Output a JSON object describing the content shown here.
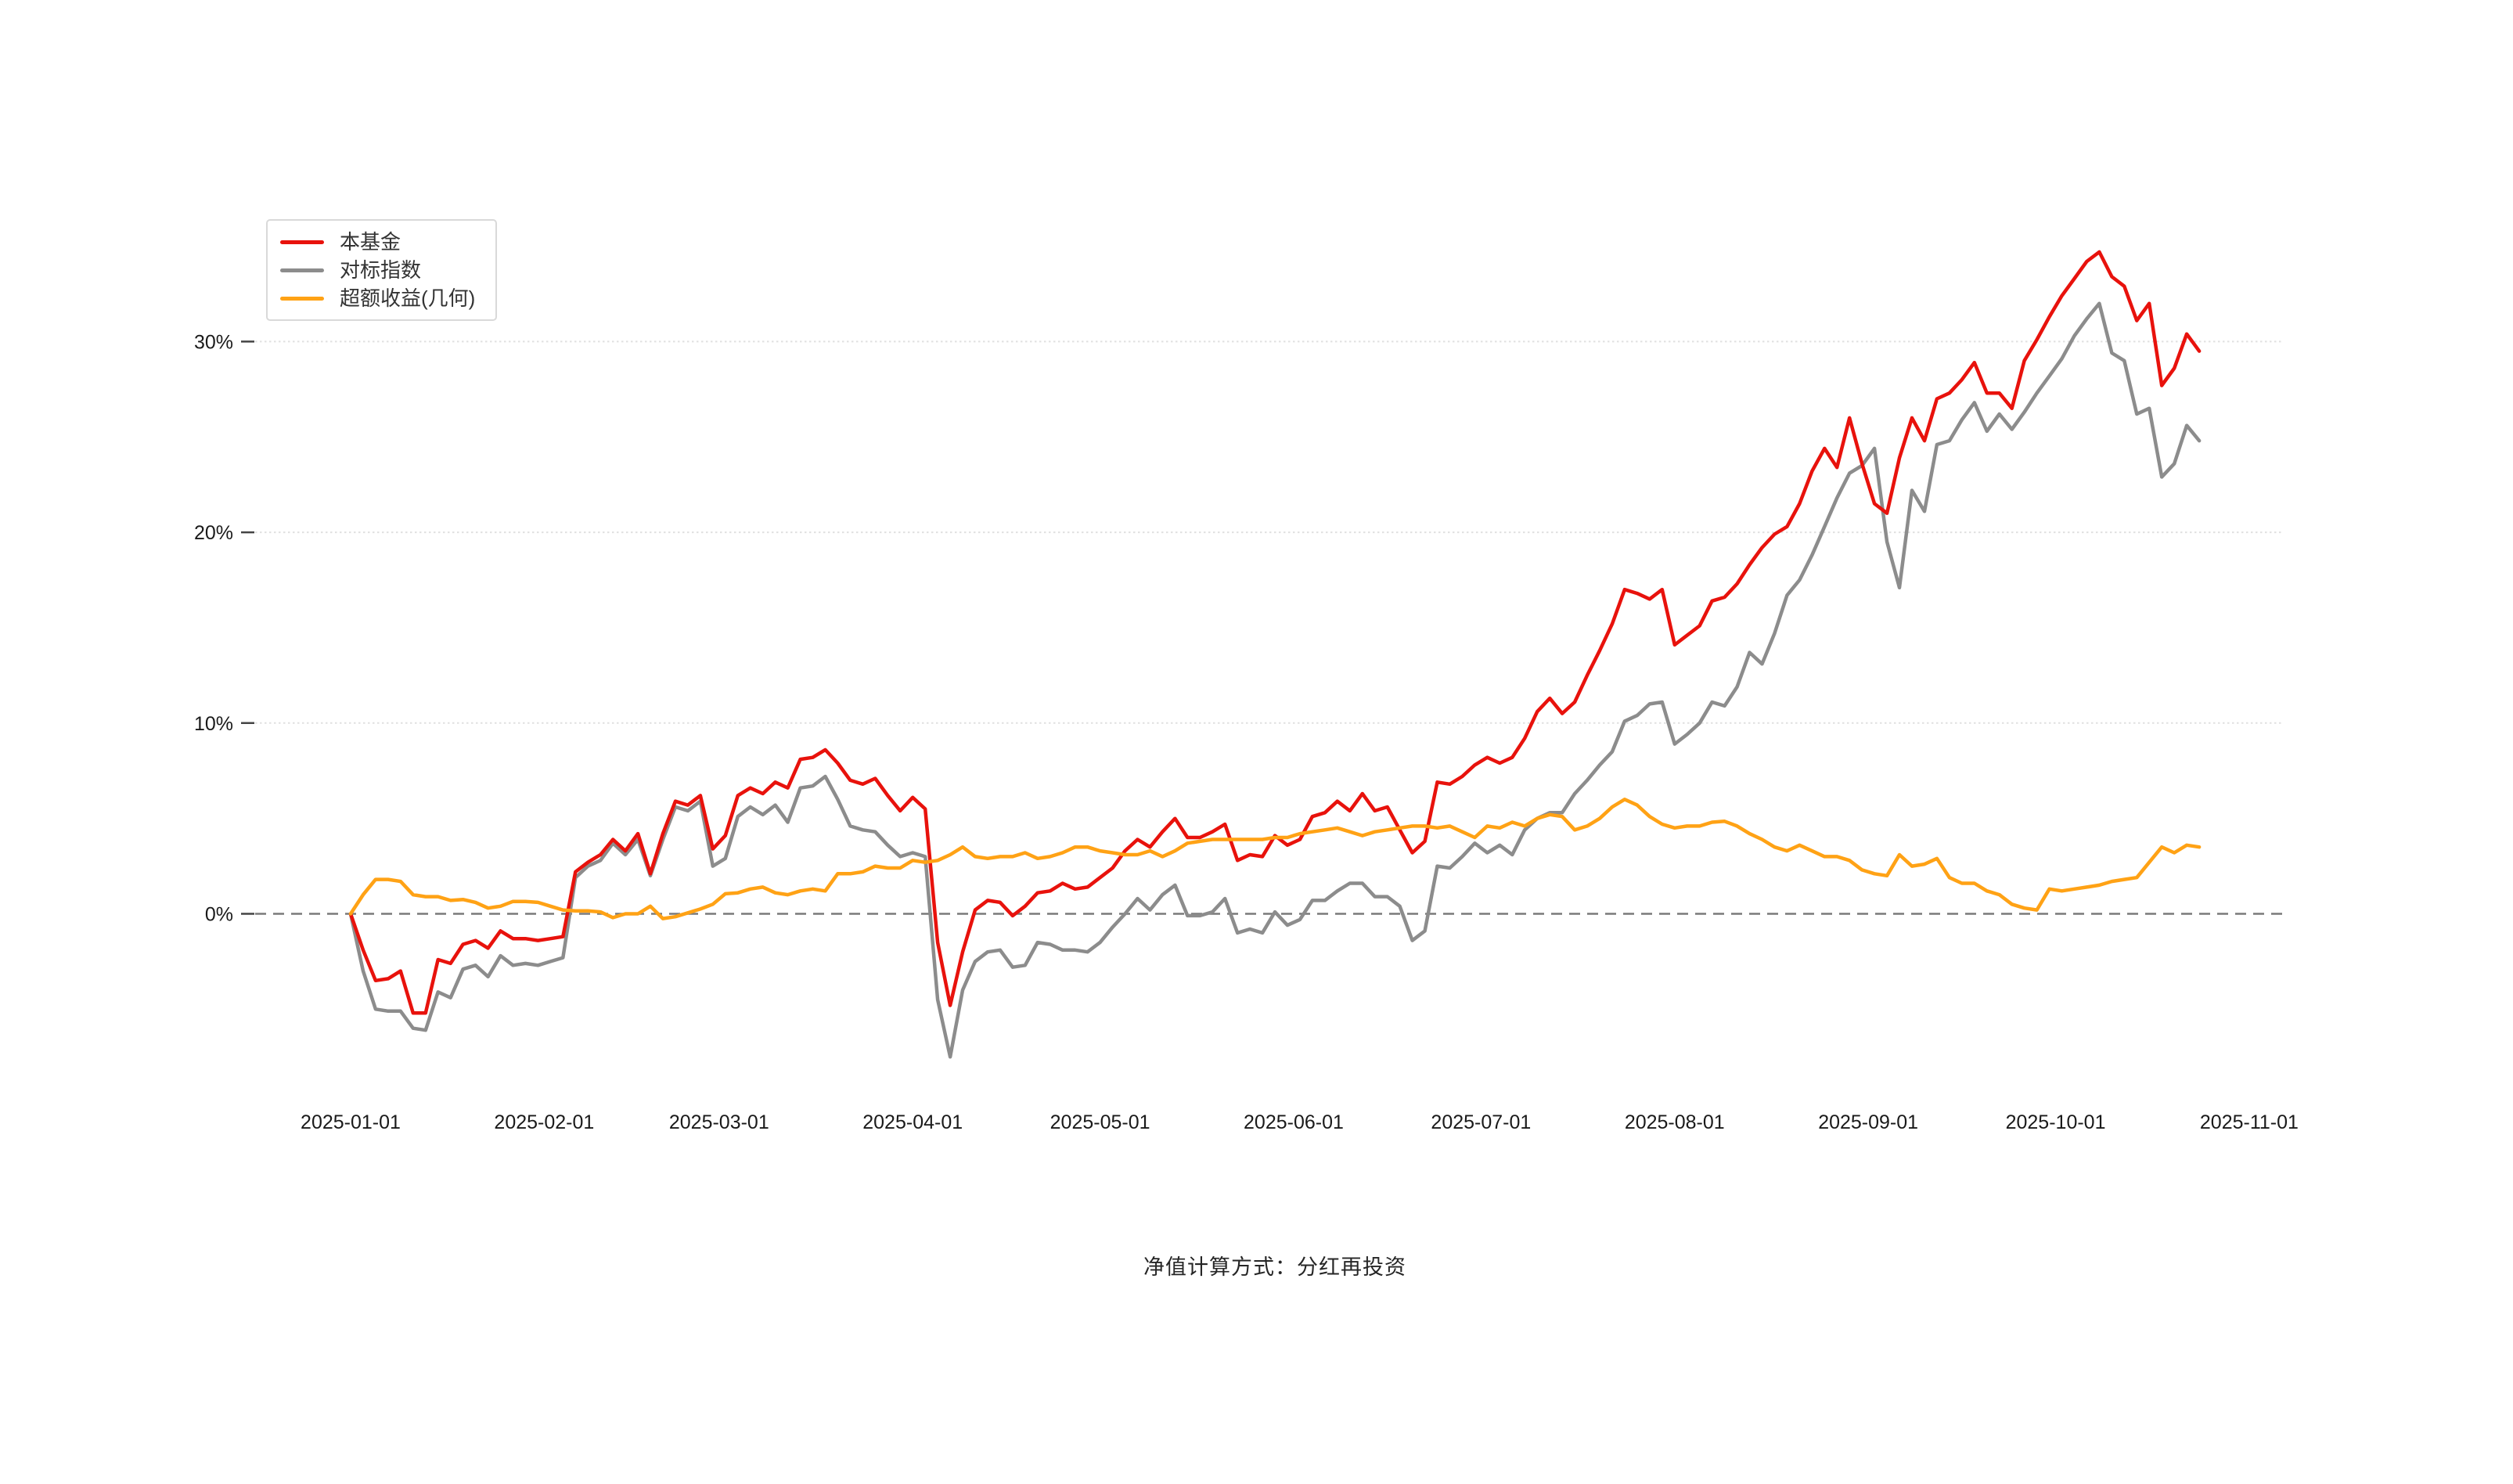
{
  "legend": {
    "items": [
      {
        "label": "本基金"
      },
      {
        "label": "对标指数"
      },
      {
        "label": "超额收益(几何)"
      }
    ]
  },
  "footer": {
    "text": "净值计算方式：分红再投资"
  },
  "chart_data": {
    "type": "line",
    "title": "",
    "xlabel": "",
    "ylabel": "",
    "grid": {
      "horizontal_gridlines": true,
      "zero_line_dashed": true
    },
    "legend_position": "top-left",
    "x_axis": {
      "start_date": "2025-01-01",
      "tick_labels": [
        "2025-01-01",
        "2025-02-01",
        "2025-03-01",
        "2025-04-01",
        "2025-05-01",
        "2025-06-01",
        "2025-07-01",
        "2025-08-01",
        "2025-09-01",
        "2025-10-01",
        "2025-11-01"
      ],
      "tick_day_offsets": [
        0,
        31,
        59,
        90,
        120,
        151,
        181,
        212,
        243,
        273,
        304
      ],
      "xlim_days": [
        0,
        310
      ]
    },
    "y_axis": {
      "unit": "%",
      "tick_labels": [
        "0%",
        "10%",
        "20%",
        "30%"
      ],
      "tick_values": [
        0,
        10,
        20,
        30
      ],
      "ylim": [
        -9.5,
        36
      ]
    },
    "sampling": {
      "start_day": 0,
      "step_days": 2,
      "points": 149
    },
    "series": [
      {
        "name": "本基金",
        "key": "fund",
        "color": "#e8120c",
        "values": [
          0,
          -1.9,
          -3.5,
          -3.4,
          -3.0,
          -5.2,
          -5.2,
          -2.4,
          -2.6,
          -1.6,
          -1.4,
          -1.8,
          -0.9,
          -1.3,
          -1.3,
          -1.4,
          -1.3,
          -1.2,
          2.2,
          2.7,
          3.1,
          3.9,
          3.3,
          4.2,
          2.1,
          4.2,
          5.9,
          5.7,
          6.2,
          3.4,
          4.1,
          6.2,
          6.6,
          6.3,
          6.9,
          6.6,
          8.1,
          8.2,
          8.6,
          7.9,
          7.0,
          6.8,
          7.1,
          6.2,
          5.4,
          6.1,
          5.5,
          -1.5,
          -4.8,
          -2.0,
          0.2,
          0.7,
          0.6,
          -0.1,
          0.4,
          1.1,
          1.2,
          1.6,
          1.3,
          1.4,
          1.9,
          2.4,
          3.3,
          3.9,
          3.5,
          4.3,
          5.0,
          4.0,
          4.0,
          4.3,
          4.7,
          2.8,
          3.1,
          3.0,
          4.1,
          3.6,
          3.9,
          5.1,
          5.3,
          5.9,
          5.4,
          6.3,
          5.4,
          5.6,
          4.4,
          3.2,
          3.8,
          6.9,
          6.8,
          7.2,
          7.8,
          8.2,
          7.9,
          8.2,
          9.2,
          10.6,
          11.3,
          10.5,
          11.1,
          12.5,
          13.8,
          15.2,
          17.0,
          16.8,
          16.5,
          17.0,
          14.1,
          14.6,
          15.1,
          16.4,
          16.6,
          17.3,
          18.3,
          19.2,
          19.9,
          20.3,
          21.5,
          23.2,
          24.4,
          23.4,
          26.0,
          23.6,
          21.5,
          21.0,
          23.9,
          26.0,
          24.8,
          27.0,
          27.3,
          28.0,
          28.9,
          27.3,
          27.3,
          26.5,
          29.0,
          30.1,
          31.3,
          32.4,
          33.3,
          34.2,
          34.7,
          33.4,
          32.9,
          31.1,
          32.0,
          27.7,
          28.6,
          30.4,
          29.5
        ]
      },
      {
        "name": "对标指数",
        "key": "benchmark",
        "color": "#8c8c8c",
        "values": [
          0,
          -3.0,
          -5.0,
          -5.1,
          -5.1,
          -6.0,
          -6.1,
          -4.1,
          -4.4,
          -2.9,
          -2.7,
          -3.3,
          -2.2,
          -2.7,
          -2.6,
          -2.7,
          -2.5,
          -2.3,
          1.9,
          2.5,
          2.8,
          3.7,
          3.1,
          3.9,
          2.0,
          3.9,
          5.6,
          5.4,
          5.9,
          2.5,
          2.9,
          5.1,
          5.6,
          5.2,
          5.7,
          4.8,
          6.6,
          6.7,
          7.2,
          6.0,
          4.6,
          4.4,
          4.3,
          3.6,
          3.0,
          3.2,
          3.0,
          -4.5,
          -7.5,
          -4.0,
          -2.5,
          -2.0,
          -1.9,
          -2.8,
          -2.7,
          -1.5,
          -1.6,
          -1.9,
          -1.9,
          -2.0,
          -1.5,
          -0.7,
          0.0,
          0.8,
          0.2,
          1.0,
          1.5,
          -0.1,
          -0.1,
          0.1,
          0.8,
          -1.0,
          -0.8,
          -1.0,
          0.1,
          -0.6,
          -0.3,
          0.7,
          0.7,
          1.2,
          1.6,
          1.6,
          0.9,
          0.9,
          0.4,
          -1.4,
          -0.9,
          2.5,
          2.4,
          3.0,
          3.7,
          3.2,
          3.6,
          3.1,
          4.4,
          5.0,
          5.3,
          5.3,
          6.3,
          7.0,
          7.8,
          8.5,
          10.1,
          10.4,
          11.0,
          11.1,
          8.9,
          9.4,
          10.0,
          11.1,
          10.9,
          11.9,
          13.7,
          13.1,
          14.7,
          16.7,
          17.5,
          18.8,
          20.3,
          21.8,
          23.1,
          23.5,
          24.4,
          19.5,
          17.1,
          22.2,
          21.1,
          24.6,
          24.8,
          25.9,
          26.8,
          25.3,
          26.2,
          25.4,
          26.3,
          27.3,
          28.2,
          29.1,
          30.3,
          31.2,
          32.0,
          29.4,
          29.0,
          26.2,
          26.5,
          22.9,
          23.6,
          25.6,
          24.8
        ]
      },
      {
        "name": "超额收益(几何)",
        "key": "excess-return-geometric",
        "color": "#ffa215",
        "values": [
          0,
          1.0,
          1.8,
          1.8,
          1.7,
          1.0,
          0.9,
          0.9,
          0.7,
          0.75,
          0.6,
          0.3,
          0.4,
          0.65,
          0.65,
          0.6,
          0.4,
          0.2,
          0.15,
          0.15,
          0.1,
          -0.2,
          0.0,
          0.0,
          0.4,
          -0.25,
          -0.15,
          0.05,
          0.25,
          0.5,
          1.05,
          1.1,
          1.3,
          1.4,
          1.1,
          1.0,
          1.2,
          1.3,
          1.2,
          2.1,
          2.1,
          2.2,
          2.5,
          2.4,
          2.4,
          2.8,
          2.7,
          2.8,
          3.1,
          3.5,
          3.0,
          2.9,
          3.0,
          3.0,
          3.2,
          2.9,
          3.0,
          3.2,
          3.5,
          3.5,
          3.3,
          3.2,
          3.1,
          3.1,
          3.3,
          3.0,
          3.3,
          3.7,
          3.8,
          3.9,
          3.9,
          3.9,
          3.9,
          3.9,
          4.0,
          4.0,
          4.2,
          4.3,
          4.4,
          4.5,
          4.3,
          4.1,
          4.3,
          4.4,
          4.5,
          4.6,
          4.6,
          4.5,
          4.6,
          4.3,
          4.0,
          4.6,
          4.5,
          4.8,
          4.6,
          5.0,
          5.2,
          5.1,
          4.4,
          4.6,
          5.0,
          5.6,
          6.0,
          5.7,
          5.1,
          4.7,
          4.5,
          4.6,
          4.6,
          4.8,
          4.85,
          4.6,
          4.2,
          3.9,
          3.5,
          3.3,
          3.6,
          3.3,
          3.0,
          3.0,
          2.8,
          2.3,
          2.1,
          2.0,
          3.1,
          2.5,
          2.6,
          2.9,
          1.9,
          1.6,
          1.6,
          1.2,
          1.0,
          0.5,
          0.3,
          0.2,
          1.3,
          1.2,
          1.3,
          1.4,
          1.5,
          1.7,
          1.8,
          1.9,
          2.7,
          3.5,
          3.2,
          3.6,
          3.5
        ]
      }
    ],
    "style": {
      "background": "#ffffff",
      "gridline_color": "#e0e0e0",
      "zero_line_color": "#7a7a7a",
      "axis_label_color": "#1a1a1a",
      "line_width": 4.5
    }
  }
}
